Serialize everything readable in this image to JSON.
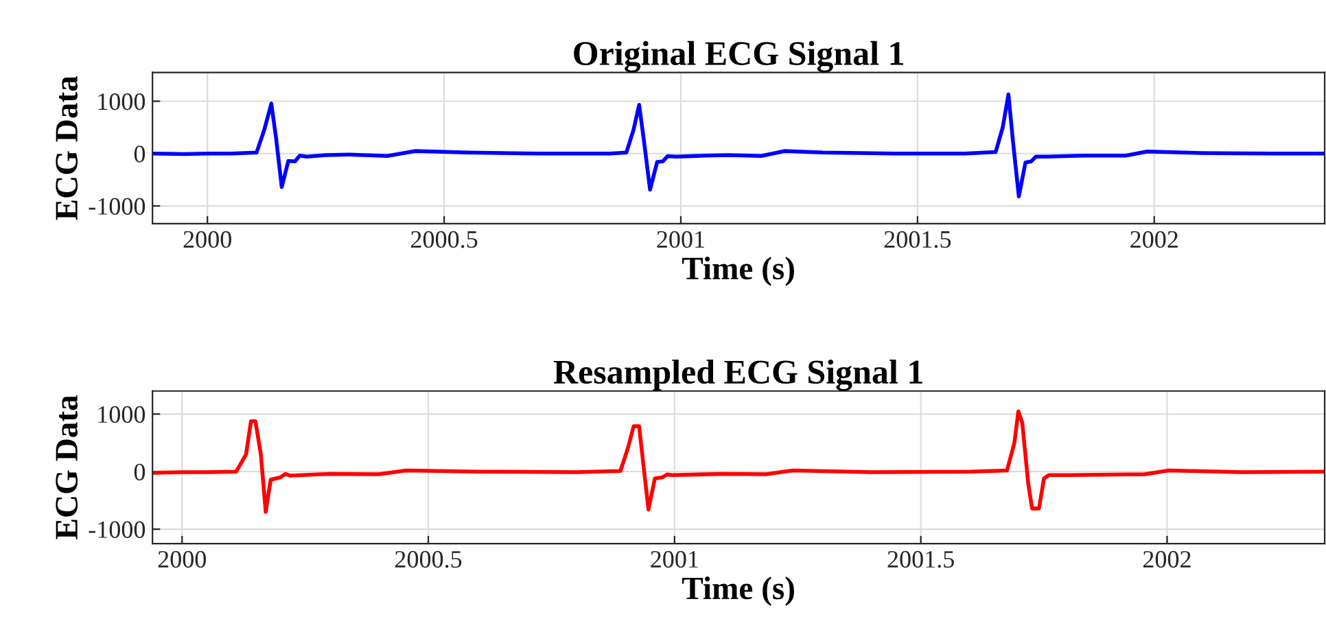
{
  "chart_data": [
    {
      "type": "line",
      "title": "Original ECG Signal 1",
      "xlabel": "Time (s)",
      "ylabel": "ECG Data",
      "xlim": [
        1999.884,
        2002.36
      ],
      "ylim": [
        -1340,
        1550
      ],
      "xticks": [
        2000,
        2000.5,
        2001,
        2001.5,
        2002
      ],
      "yticks": [
        -1000,
        0,
        1000
      ],
      "grid": true,
      "legend": false,
      "series": [
        {
          "color": "#0000ff",
          "x": [
            1999.884,
            1999.95,
            2000.0,
            2000.05,
            2000.104,
            2000.12,
            2000.135,
            2000.145,
            2000.157,
            2000.171,
            2000.185,
            2000.195,
            2000.21,
            2000.25,
            2000.3,
            2000.38,
            2000.44,
            2000.55,
            2000.7,
            2000.85,
            2000.885,
            2000.9,
            2000.912,
            2000.922,
            2000.935,
            2000.95,
            2000.962,
            2000.972,
            2000.99,
            2001.05,
            2001.1,
            2001.17,
            2001.22,
            2001.3,
            2001.45,
            2001.6,
            2001.665,
            2001.68,
            2001.692,
            2001.702,
            2001.714,
            2001.728,
            2001.74,
            2001.75,
            2001.77,
            2001.85,
            2001.94,
            2001.985,
            2002.1,
            2002.25,
            2002.36
          ],
          "values": [
            0,
            -10,
            0,
            0,
            20,
            450,
            955,
            300,
            -640,
            -140,
            -150,
            -40,
            -60,
            -30,
            -20,
            -45,
            50,
            20,
            0,
            0,
            20,
            450,
            930,
            250,
            -690,
            -160,
            -150,
            -50,
            -60,
            -40,
            -30,
            -45,
            50,
            20,
            0,
            0,
            30,
            500,
            1130,
            200,
            -820,
            -170,
            -150,
            -60,
            -60,
            -40,
            -40,
            40,
            10,
            0,
            0
          ]
        }
      ]
    },
    {
      "type": "line",
      "title": "Resampled ECG Signal 1",
      "xlabel": "Time (s)",
      "ylabel": "ECG Data",
      "xlim": [
        1999.94,
        2002.32
      ],
      "ylim": [
        -1250,
        1400
      ],
      "xticks": [
        2000,
        2000.5,
        2001,
        2001.5,
        2002
      ],
      "yticks": [
        -1000,
        0,
        1000
      ],
      "grid": true,
      "legend": false,
      "series": [
        {
          "color": "#ff0000",
          "x": [
            1999.94,
            2000.0,
            2000.05,
            2000.11,
            2000.13,
            2000.14,
            2000.149,
            2000.16,
            2000.17,
            2000.18,
            2000.2,
            2000.21,
            2000.22,
            2000.3,
            2000.4,
            2000.455,
            2000.6,
            2000.8,
            2000.89,
            2000.905,
            2000.917,
            2000.928,
            2000.937,
            2000.947,
            2000.96,
            2000.975,
            2000.985,
            2000.995,
            2001.1,
            2001.186,
            2001.24,
            2001.4,
            2001.6,
            2001.675,
            2001.69,
            2001.698,
            2001.706,
            2001.718,
            2001.726,
            2001.74,
            2001.75,
            2001.76,
            2001.8,
            2001.955,
            2002.003,
            2002.15,
            2002.32
          ],
          "values": [
            -20,
            -10,
            -10,
            0,
            300,
            875,
            875,
            300,
            -700,
            -140,
            -100,
            -40,
            -70,
            -40,
            -45,
            20,
            0,
            -10,
            10,
            400,
            790,
            790,
            100,
            -660,
            -120,
            -100,
            -50,
            -60,
            -40,
            -45,
            20,
            -10,
            0,
            20,
            500,
            1045,
            850,
            -200,
            -640,
            -640,
            -120,
            -60,
            -60,
            -45,
            20,
            -10,
            0
          ]
        }
      ]
    }
  ]
}
